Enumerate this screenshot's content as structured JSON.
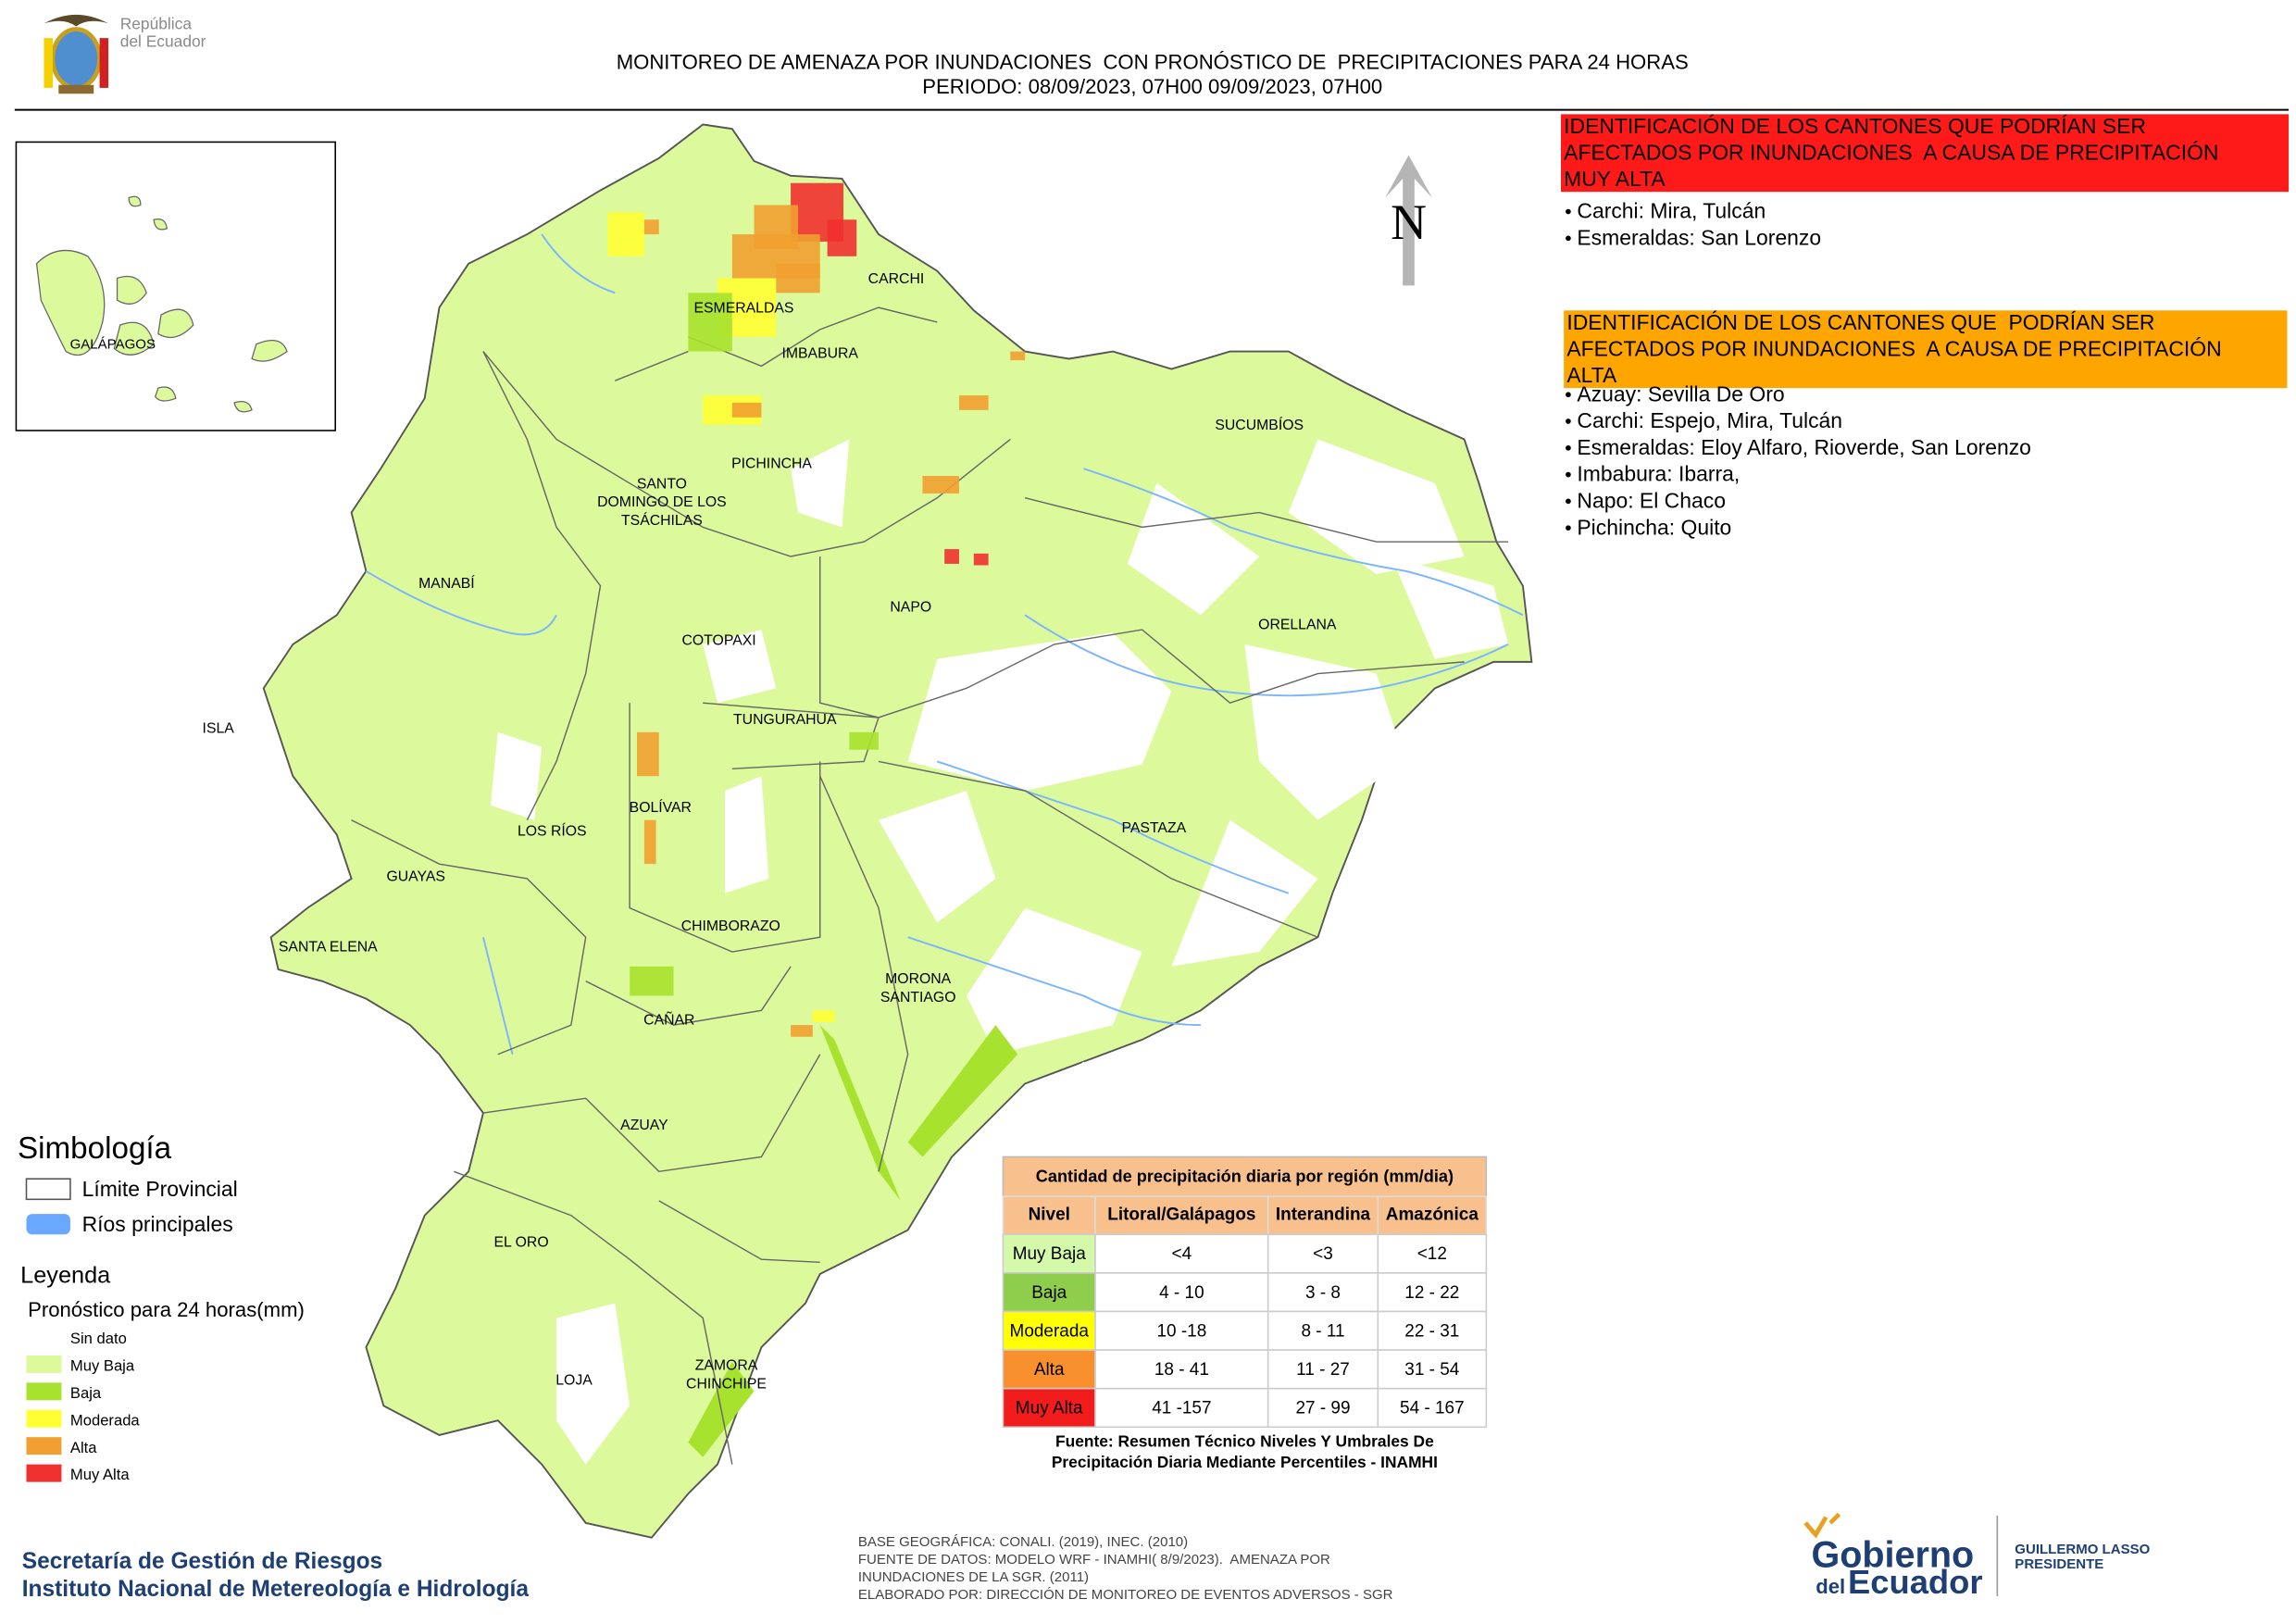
{
  "header": {
    "logo_text": [
      "República",
      "del Ecuador"
    ],
    "title": "MONITOREO DE AMENAZA POR INUNDACIONES  CON PRONÓSTICO DE  PRECIPITACIONES PARA 24 HORAS",
    "period": "PERIODO: 08/09/2023, 07H00 09/09/2023, 07H00"
  },
  "map": {
    "north": "N",
    "inset_label": "GALÁPAGOS",
    "provinces": [
      [
        "CARCHI"
      ],
      [
        "ESMERALDAS"
      ],
      [
        "IMBABURA"
      ],
      [
        "SUCUMBÍOS"
      ],
      [
        "PICHINCHA"
      ],
      [
        "SANTO",
        "DOMINGO DE LOS",
        "TSÁCHILAS"
      ],
      [
        "MANABÍ"
      ],
      [
        "NAPO"
      ],
      [
        "ORELLANA"
      ],
      [
        "COTOPAXI"
      ],
      [
        "ISLA"
      ],
      [
        "TUNGURAHUA"
      ],
      [
        "BOLÍVAR"
      ],
      [
        "LOS RÍOS"
      ],
      [
        "PASTAZA"
      ],
      [
        "GUAYAS"
      ],
      [
        "CHIMBORAZO"
      ],
      [
        "SANTA ELENA"
      ],
      [
        "MORONA",
        "SANTIAGO"
      ],
      [
        "CAÑAR"
      ],
      [
        "AZUAY"
      ],
      [
        "EL ORO"
      ],
      [
        "ZAMORA",
        "CHINCHIPE"
      ],
      [
        "LOJA"
      ]
    ]
  },
  "alerts": [
    {
      "heading": [
        "IDENTIFICACIÓN DE LOS CANTONES QUE PODRÍAN SER",
        "AFECTADOS POR INUNDACIONES  A CAUSA DE PRECIPITACIÓN",
        "MUY ALTA"
      ],
      "items": [
        "Carchi: Mira, Tulcán",
        "Esmeraldas: San Lorenzo"
      ]
    },
    {
      "heading": [
        "IDENTIFICACIÓN DE LOS CANTONES QUE  PODRÍAN SER",
        "AFECTADOS POR INUNDACIONES  A CAUSA DE PRECIPITACIÓN",
        "ALTA"
      ],
      "items": [
        "Azuay: Sevilla De Oro",
        "Carchi: Espejo, Mira, Tulcán",
        "Esmeraldas: Eloy Alfaro, Rioverde, San Lorenzo",
        "Imbabura: Ibarra,",
        "Napo: El Chaco",
        "Pichincha: Quito"
      ]
    }
  ],
  "symbology": {
    "title": "Simbología",
    "items": [
      "Límite Provincial",
      "Ríos principales"
    ]
  },
  "legend": {
    "title": "Leyenda",
    "subtitle": "Pronóstico para 24 horas(mm)",
    "items": [
      "Sin dato",
      "Muy Baja",
      "Baja",
      "Moderada",
      "Alta",
      "Muy Alta"
    ]
  },
  "table": {
    "title": "Cantidad de precipitación diaria por región (mm/dia)",
    "header": [
      "Nivel",
      "Litoral/Galápagos",
      "Interandina",
      "Amazónica"
    ],
    "rows": [
      [
        "Muy Baja",
        "<4",
        "<3",
        "<12"
      ],
      [
        "Baja",
        "4 - 10",
        "3 - 8",
        "12 - 22"
      ],
      [
        "Moderada",
        "10 -18",
        "8 - 11",
        "22 - 31"
      ],
      [
        "Alta",
        "18 - 41",
        "11 - 27",
        "31 - 54"
      ],
      [
        "Muy Alta",
        "41 -157",
        "27 - 99",
        "54 - 167"
      ]
    ],
    "source": [
      "Fuente: Resumen Técnico Niveles Y Umbrales De",
      "Precipitación Diaria Mediante Percentiles - INAMHI"
    ]
  },
  "footer": {
    "org": [
      "Secretaría de Gestión de Riesgos",
      "Instituto Nacional de Metereología e Hidrología"
    ],
    "notes": [
      "BASE GEOGRÁFICA: CONALI. (2019), INEC. (2010)",
      "FUENTE DE DATOS: MODELO WRF - INAMHI( 8/9/2023).  AMENAZA POR",
      "INUNDACIONES DE LA SGR. (2011)",
      "ELABORADO POR: DIRECCIÓN DE MONITOREO DE EVENTOS ADVERSOS - SGR"
    ],
    "gov": [
      "Gobierno",
      "del",
      "Ecuador"
    ],
    "president": [
      "GUILLERMO LASSO",
      "PRESIDENTE"
    ]
  }
}
